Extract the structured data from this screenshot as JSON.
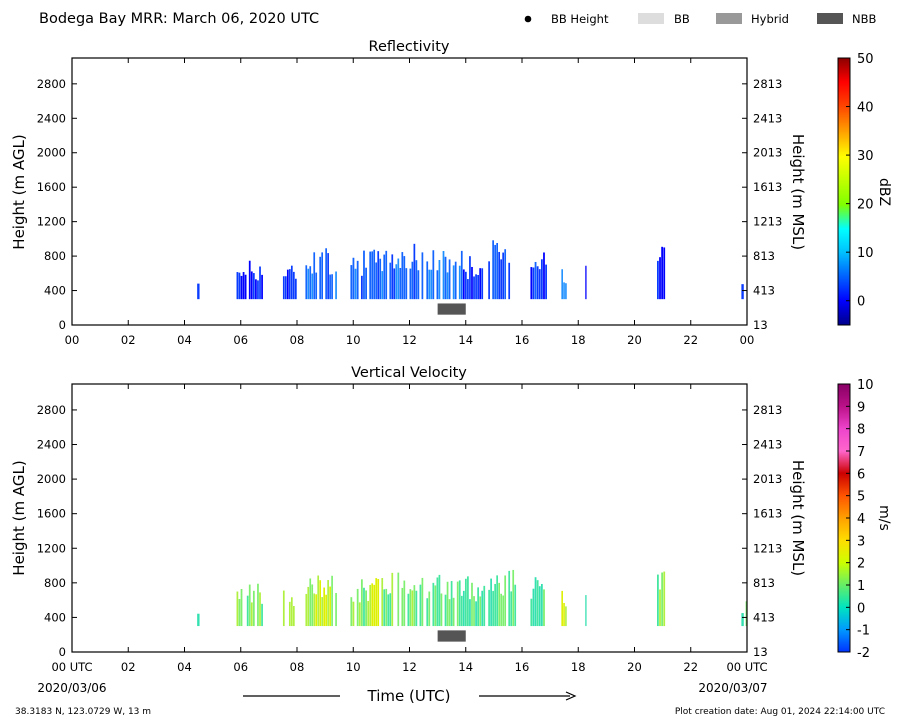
{
  "header": {
    "title": "Bodega Bay MRR:  March 06, 2020 UTC",
    "legend": [
      {
        "label": "BB Height",
        "kind": "dot",
        "color": "#000000"
      },
      {
        "label": "BB",
        "kind": "swatch",
        "color": "#dddddd"
      },
      {
        "label": "Hybrid",
        "kind": "swatch",
        "color": "#999999"
      },
      {
        "label": "NBB",
        "kind": "swatch",
        "color": "#555555"
      }
    ]
  },
  "footer": {
    "coords": "38.3183 N, 123.0729 W, 13 m",
    "created": "Plot creation date: Aug 01, 2024 22:14:00 UTC",
    "time_label": "Time (UTC)",
    "start_date": "2020/03/06",
    "end_date": "2020/03/07"
  },
  "chart_data": [
    {
      "type": "heatmap",
      "title": "Reflectivity",
      "ylabel": "Height (m AGL)",
      "ylabel_right": "Height (m MSL)",
      "xlim": [
        0,
        24
      ],
      "ylim": [
        0,
        3100
      ],
      "x_ticks": [
        "00",
        "02",
        "04",
        "06",
        "08",
        "10",
        "12",
        "14",
        "16",
        "18",
        "20",
        "22",
        "00"
      ],
      "y_ticks": [
        0,
        400,
        800,
        1200,
        1600,
        2000,
        2400,
        2800
      ],
      "y_ticks_right": [
        "13",
        "413",
        "813",
        "1213",
        "1613",
        "2013",
        "2413",
        "2813"
      ],
      "colorbar": {
        "label": "dBZ",
        "ticks": [
          "0",
          "10",
          "20",
          "30",
          "40",
          "50"
        ],
        "range": [
          -5,
          50
        ]
      },
      "bright_band": [
        {
          "type": "NBB",
          "start": 13.0,
          "end": 14.0
        }
      ],
      "echo_periods": [
        {
          "start": 4.45,
          "end": 4.55,
          "top": 500,
          "value": 2
        },
        {
          "start": 5.85,
          "end": 6.8,
          "top": 780,
          "value": 2
        },
        {
          "start": 7.5,
          "end": 8.0,
          "top": 720,
          "value": 3
        },
        {
          "start": 8.3,
          "end": 9.5,
          "top": 900,
          "value": 5
        },
        {
          "start": 9.9,
          "end": 10.5,
          "top": 870,
          "value": 5
        },
        {
          "start": 10.5,
          "end": 11.0,
          "top": 900,
          "value": 4
        },
        {
          "start": 11.0,
          "end": 12.5,
          "top": 950,
          "value": 5
        },
        {
          "start": 12.6,
          "end": 13.9,
          "top": 900,
          "value": 6
        },
        {
          "start": 13.9,
          "end": 14.7,
          "top": 820,
          "value": 3
        },
        {
          "start": 14.8,
          "end": 15.8,
          "top": 1000,
          "value": 4
        },
        {
          "start": 16.3,
          "end": 16.9,
          "top": 900,
          "value": 3
        },
        {
          "start": 17.4,
          "end": 17.6,
          "top": 740,
          "value": 8
        },
        {
          "start": 18.25,
          "end": 18.3,
          "top": 700,
          "value": 2
        },
        {
          "start": 20.8,
          "end": 21.1,
          "top": 1000,
          "value": 2
        },
        {
          "start": 23.8,
          "end": 23.9,
          "top": 520,
          "value": 2
        }
      ]
    },
    {
      "type": "heatmap",
      "title": "Vertical Velocity",
      "ylabel": "Height (m AGL)",
      "ylabel_right": "Height (m MSL)",
      "xlim": [
        0,
        24
      ],
      "ylim": [
        0,
        3100
      ],
      "x_ticks": [
        "00 UTC",
        "02",
        "04",
        "06",
        "08",
        "10",
        "12",
        "14",
        "16",
        "18",
        "20",
        "22",
        "00 UTC"
      ],
      "y_ticks": [
        0,
        400,
        800,
        1200,
        1600,
        2000,
        2400,
        2800
      ],
      "y_ticks_right": [
        "13",
        "413",
        "813",
        "1213",
        "1613",
        "2013",
        "2413",
        "2813"
      ],
      "colorbar": {
        "label": "m/s",
        "ticks": [
          "-2",
          "-1",
          "0",
          "1",
          "2",
          "3",
          "4",
          "5",
          "6",
          "7",
          "8",
          "9",
          "10"
        ],
        "range": [
          -2,
          10
        ]
      },
      "bright_band": [
        {
          "type": "NBB",
          "start": 13.0,
          "end": 14.0
        }
      ],
      "echo_periods": [
        {
          "start": 4.45,
          "end": 4.55,
          "top": 600,
          "value": 0.5
        },
        {
          "start": 5.85,
          "end": 6.8,
          "top": 800,
          "value": 1.2
        },
        {
          "start": 7.5,
          "end": 8.0,
          "top": 720,
          "value": 1.3
        },
        {
          "start": 8.3,
          "end": 9.5,
          "top": 900,
          "value": 1.6
        },
        {
          "start": 9.9,
          "end": 10.5,
          "top": 870,
          "value": 1.4
        },
        {
          "start": 10.5,
          "end": 11.0,
          "top": 900,
          "value": 2.0
        },
        {
          "start": 11.0,
          "end": 12.5,
          "top": 1000,
          "value": 1.2
        },
        {
          "start": 12.6,
          "end": 13.9,
          "top": 900,
          "value": 1.0
        },
        {
          "start": 13.9,
          "end": 14.7,
          "top": 880,
          "value": 0.8
        },
        {
          "start": 14.8,
          "end": 15.8,
          "top": 1000,
          "value": 1.0
        },
        {
          "start": 16.3,
          "end": 16.9,
          "top": 900,
          "value": 0.9
        },
        {
          "start": 17.4,
          "end": 17.6,
          "top": 740,
          "value": 1.7
        },
        {
          "start": 18.25,
          "end": 18.3,
          "top": 700,
          "value": 0.5
        },
        {
          "start": 20.8,
          "end": 21.1,
          "top": 1000,
          "value": 1.2
        },
        {
          "start": 23.8,
          "end": 23.9,
          "top": 500,
          "value": 0.5
        },
        {
          "start": 23.95,
          "end": 24.0,
          "top": 600,
          "value": 0.8
        }
      ]
    }
  ]
}
